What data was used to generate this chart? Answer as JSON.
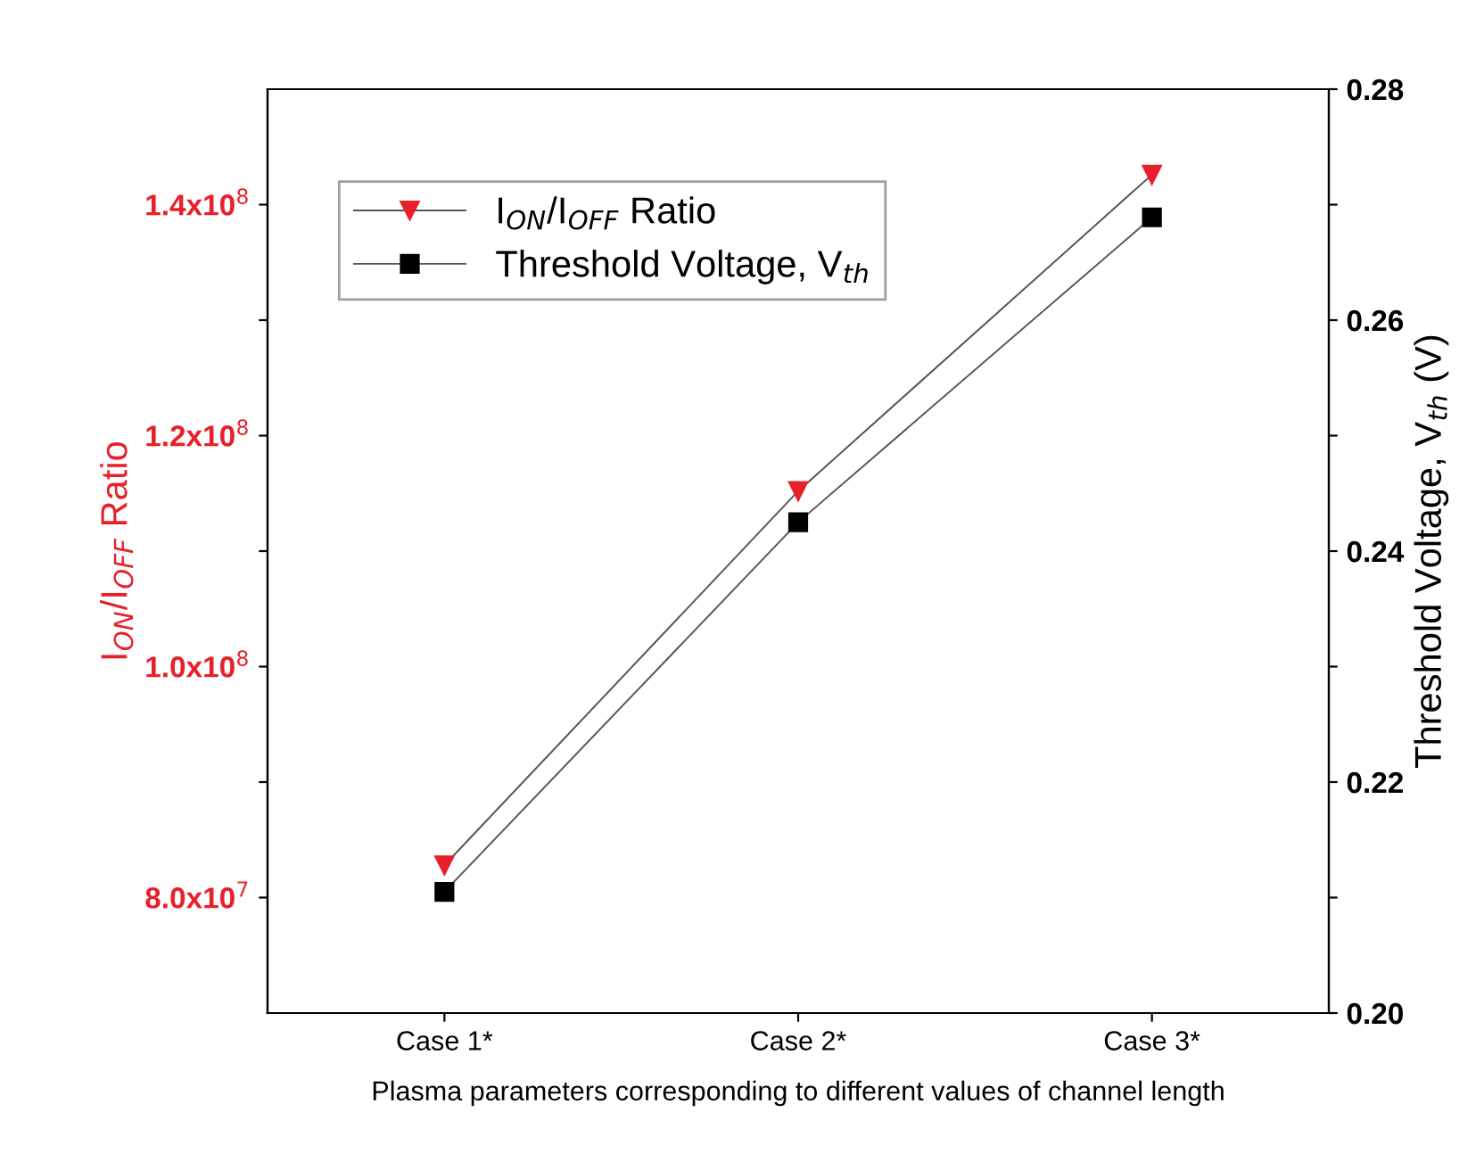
{
  "chart_data": {
    "type": "line",
    "xlabel": "Plasma parameters corresponding to different values of channel length",
    "ylabel": "I$_{ON}$/I$_{OFF}$ Ratio",
    "y2label": "Threshold Voltage, V$_{th}$ (V)",
    "categories": [
      "Case 1*",
      "Case 2*",
      "Case 3*"
    ],
    "series": [
      {
        "name": "I$_{ON}$/I$_{OFF}$ Ratio",
        "color": "#e8202a",
        "values": [
          82800000,
          115200000,
          142600000
        ],
        "marker": "triangle"
      },
      {
        "name": "Threshold Voltage, V$_{th}$",
        "color": "#000000",
        "values": [
          0.2105,
          0.2425,
          0.2689
        ],
        "marker": "square",
        "axis": "y2"
      }
    ],
    "ylim": [
      70000000,
      150000000
    ],
    "yticks": [
      {
        "value": 80000000,
        "label": "8.0x10$^{7}$"
      },
      {
        "value": 90000000,
        "label": null
      },
      {
        "value": 100000000,
        "label": "1.0x10$^{8}$"
      },
      {
        "value": 110000000,
        "label": null
      },
      {
        "value": 120000000,
        "label": "1.2x10$^{8}$"
      },
      {
        "value": 130000000,
        "label": null
      },
      {
        "value": 140000000,
        "label": "1.4x10$^{8}$"
      }
    ],
    "y2lim": [
      0.2,
      0.28
    ],
    "y2ticks": [
      {
        "value": 0.2,
        "label": "0.20"
      },
      {
        "value": 0.21,
        "label": null
      },
      {
        "value": 0.22,
        "label": "0.22"
      },
      {
        "value": 0.23,
        "label": null
      },
      {
        "value": 0.24,
        "label": "0.24"
      },
      {
        "value": 0.25,
        "label": null
      },
      {
        "value": 0.26,
        "label": "0.26"
      },
      {
        "value": 0.27,
        "label": null
      },
      {
        "value": 0.28,
        "label": "0.28"
      }
    ],
    "legend": "top left",
    "grid": false,
    "line_style": "solid"
  }
}
